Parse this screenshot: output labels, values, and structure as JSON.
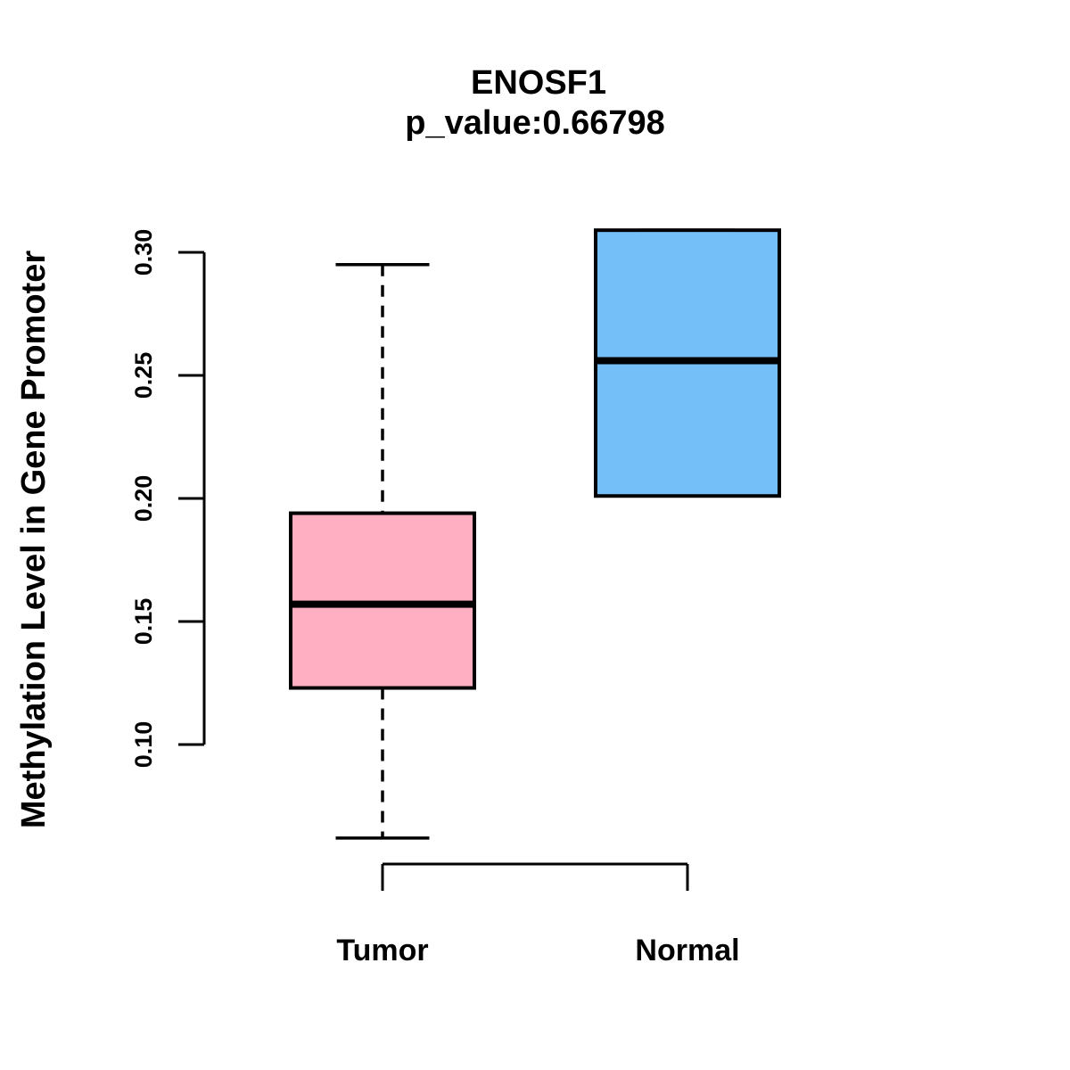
{
  "figure": {
    "title": "ENOSF1",
    "subtitle": "p_value:0.66798",
    "ylabel": "Methylation Level in Gene Promoter"
  },
  "chart_data": {
    "type": "boxplot",
    "title": "ENOSF1",
    "subtitle": "p_value:0.66798",
    "xlabel": "",
    "ylabel": "Methylation Level in Gene Promoter",
    "categories": [
      "Tumor",
      "Normal"
    ],
    "y_tick_labels": [
      "0.10",
      "0.15",
      "0.20",
      "0.25",
      "0.30"
    ],
    "y_ticks": [
      0.1,
      0.15,
      0.2,
      0.25,
      0.3
    ],
    "ylim": [
      0.1,
      0.3
    ],
    "grid": false,
    "legend": "none",
    "orientation": "vertical",
    "series": [
      {
        "name": "Tumor",
        "color": "#FFAFC1",
        "whisker_low": 0.062,
        "q1": 0.123,
        "median": 0.157,
        "q3": 0.194,
        "whisker_high": 0.295
      },
      {
        "name": "Normal",
        "color": "#74BFF8",
        "whisker_low": 0.201,
        "q1": 0.201,
        "median": 0.256,
        "q3": 0.309,
        "whisker_high": 0.309
      }
    ],
    "line_color": "#000000",
    "background_color": "#ffffff"
  }
}
